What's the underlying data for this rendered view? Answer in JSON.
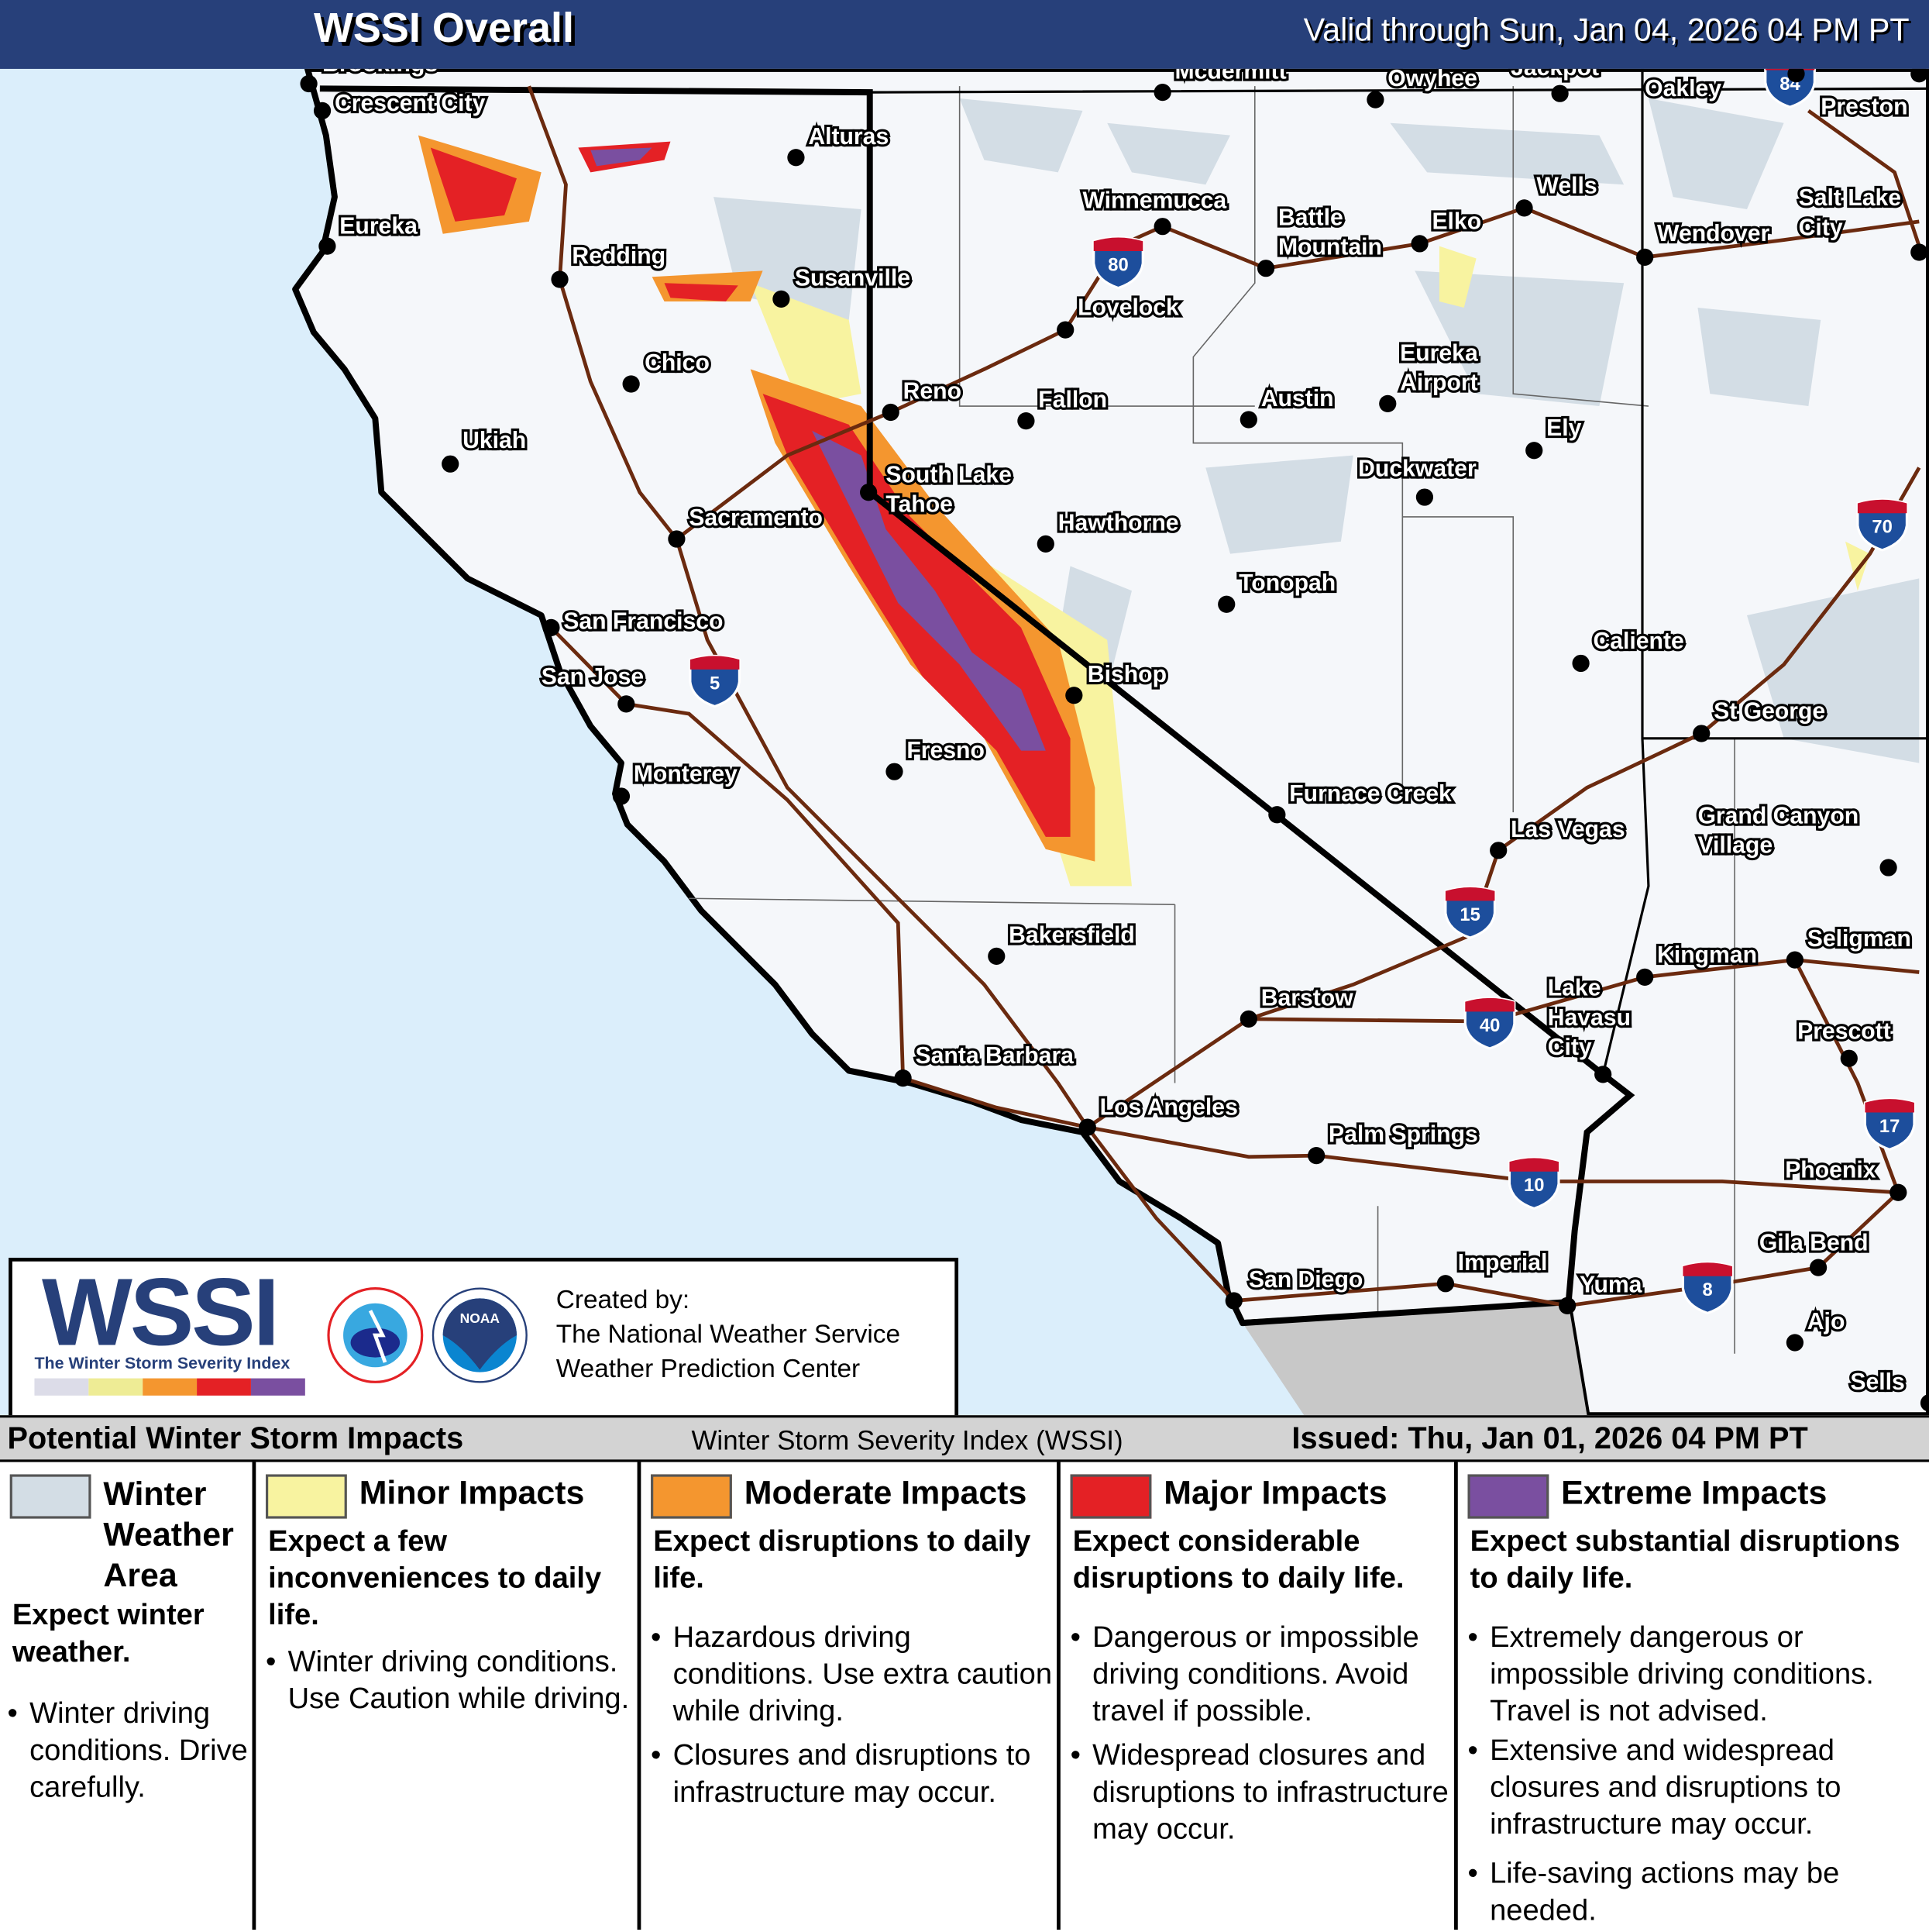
{
  "header": {
    "title": "WSSI Overall",
    "valid": "Valid through Sun, Jan 04, 2026 04 PM PT"
  },
  "colors": {
    "ocean": "#dbeefb",
    "land": "#f5f7fa",
    "mexico": "#c8c8c8",
    "road": "#6b2a0f",
    "winter": "#d3dde5",
    "minor": "#f8f3a0",
    "moderate": "#f4962f",
    "major": "#e42125",
    "extreme": "#7a4fa0",
    "header": "#27407a"
  },
  "map": {
    "cities": [
      "Brookings",
      "Crescent City",
      "Alturas",
      "Eureka",
      "Redding",
      "Susanville",
      "Chico",
      "Ukiah",
      "Reno",
      "Fallon",
      "Sacramento",
      "South Lake Tahoe",
      "Hawthorne",
      "San Francisco",
      "San Jose",
      "Bishop",
      "Fresno",
      "Monterey",
      "Bakersfield",
      "Santa Barbara",
      "Los Angeles",
      "Palm Springs",
      "San Diego",
      "Imperial",
      "Yuma",
      "Barstow",
      "Furnace Creek",
      "Las Vegas",
      "Tonopah",
      "Austin",
      "Eureka Airport",
      "Duckwater",
      "Ely",
      "Winnemucca",
      "Battle Mountain",
      "Lovelock",
      "Elko",
      "Wells",
      "Mcdermitt",
      "Owyhee",
      "Jackpot",
      "Oakley",
      "Preston",
      "Wendover",
      "Salt Lake City",
      "Caliente",
      "St George",
      "Grand Canyon Village",
      "Kingman",
      "Seligman",
      "Lake Havasu City",
      "Prescott",
      "Phoenix",
      "Gila Bend",
      "Ajo",
      "Sells"
    ],
    "interstates": [
      "84",
      "80",
      "5",
      "70",
      "15",
      "40",
      "17",
      "10",
      "8"
    ]
  },
  "logo": {
    "wordmark": "WSSI",
    "subtitle": "The Winter Storm Severity Index",
    "created_by": "Created by:",
    "org1": "The National Weather Service",
    "org2": "Weather Prediction Center",
    "nws_seal": "NATIONAL WEATHER SERVICE",
    "noaa_seal": "NOAA"
  },
  "legend": {
    "left": "Potential Winter Storm Impacts",
    "center": "Winter Storm Severity Index (WSSI)",
    "right": "Issued: Thu, Jan 01, 2026 04 PM PT",
    "categories": [
      {
        "title": "Winter Weather Area",
        "summary": "Expect winter weather.",
        "bullets": [
          "Winter driving conditions. Drive carefully."
        ]
      },
      {
        "title": "Minor Impacts",
        "summary": "Expect a few inconveniences to daily life.",
        "bullets": [
          "Winter driving conditions. Use Caution while driving."
        ]
      },
      {
        "title": "Moderate Impacts",
        "summary": "Expect disruptions to daily life.",
        "bullets": [
          "Hazardous driving conditions. Use extra caution while driving.",
          "Closures and disruptions to infrastructure may occur."
        ]
      },
      {
        "title": "Major Impacts",
        "summary": "Expect considerable disruptions to daily life.",
        "bullets": [
          "Dangerous or impossible driving conditions. Avoid travel if possible.",
          "Widespread closures and disruptions to infrastructure may occur."
        ]
      },
      {
        "title": "Extreme Impacts",
        "summary": "Expect substantial disruptions to daily life.",
        "bullets": [
          "Extremely dangerous or impossible driving conditions. Travel is not advised.",
          "Extensive and widespread closures and disruptions to infrastructure may occur.",
          "Life-saving actions may be needed."
        ]
      }
    ]
  }
}
